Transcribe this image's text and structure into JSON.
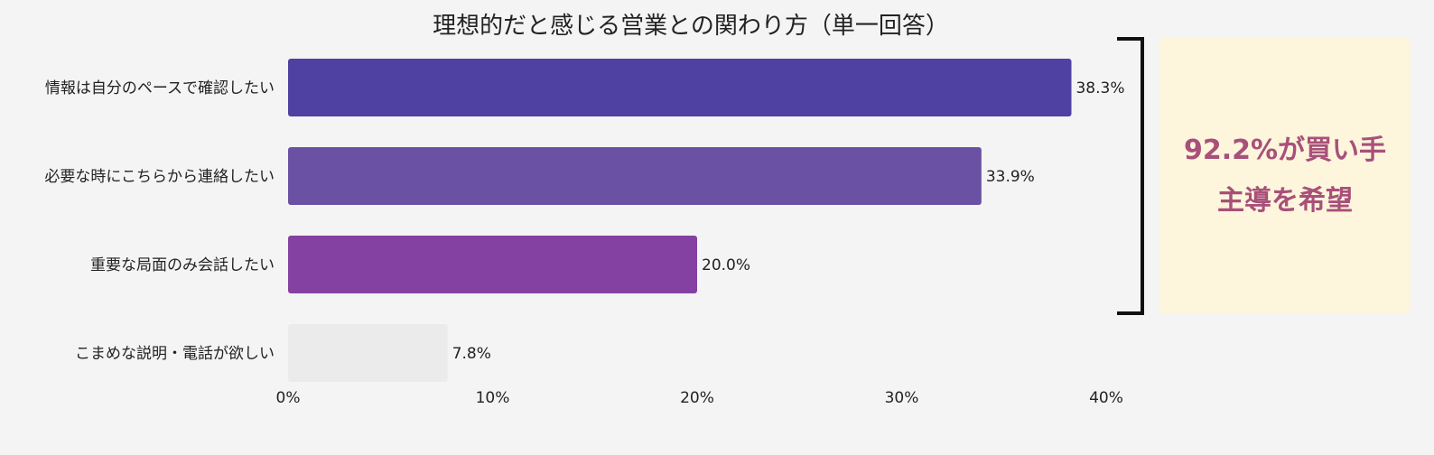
{
  "chart_data": {
    "type": "bar",
    "orientation": "horizontal",
    "title": "理想的だと感じる営業との関わり方（単一回答）",
    "categories": [
      "情報は自分のペースで確認したい",
      "必要な時にこちらから連絡したい",
      "重要な局面のみ会話したい",
      "こまめな説明・電話が欲しい"
    ],
    "values": [
      38.3,
      33.9,
      20.0,
      7.8
    ],
    "value_labels": [
      "38.3%",
      "33.9%",
      "20.0%",
      "7.8%"
    ],
    "bar_colors": [
      "#4f41a1",
      "#6a51a4",
      "#8441a1",
      "#ebebeb"
    ],
    "xlim": [
      0,
      40
    ],
    "xticks": [
      0,
      10,
      20,
      30,
      40
    ],
    "xtick_labels": [
      "0%",
      "10%",
      "20%",
      "30%",
      "40%"
    ],
    "grid": false,
    "bracket_groups": [
      0,
      1,
      2
    ]
  },
  "callout": {
    "text": "92.2%が買い手主導を希望",
    "color": "#a8507a",
    "background": "#fdf5dc"
  }
}
